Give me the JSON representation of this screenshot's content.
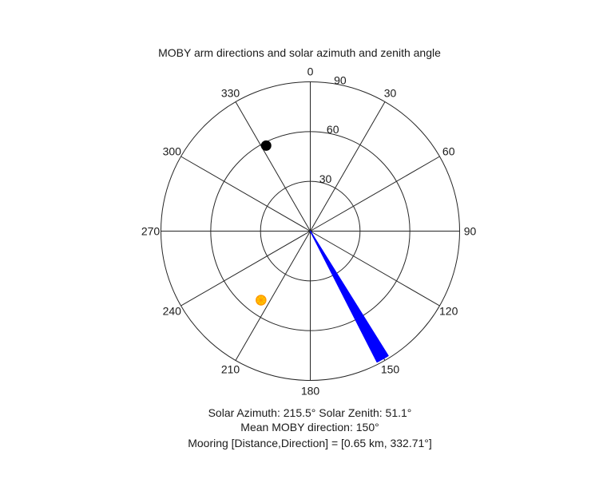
{
  "chart_data": {
    "type": "polar",
    "title": "MOBY arm directions and solar azimuth and zenith angle",
    "angle_ticks": [
      "0",
      "30",
      "60",
      "90",
      "120",
      "150",
      "180",
      "210",
      "240",
      "270",
      "300",
      "330"
    ],
    "radius_ticks": [
      30,
      60,
      90
    ],
    "rlim": [
      0,
      90
    ],
    "direction": "clockwise from north",
    "series": [
      {
        "name": "MOBY arm directions",
        "marker": "wedge",
        "color": "#0000ff",
        "angles": [
          148,
          148.5,
          149,
          149.5,
          150,
          150.5,
          151,
          151.5,
          152,
          152.5,
          153
        ],
        "radius": 90
      },
      {
        "name": "Sun",
        "marker": "sun",
        "color": "#ffcc00",
        "azimuth": 215.5,
        "zenith": 51.1
      },
      {
        "name": "Mooring",
        "marker": "dot",
        "color": "#000000",
        "direction": 332.71,
        "r": 58
      }
    ],
    "annotations": {
      "solar": "Solar Azimuth: 215.5°    Solar Zenith: 51.1°",
      "moby": "Mean MOBY direction: 150°",
      "mooring": "Mooring [Distance,Direction] = [0.65 km, 332.71°]"
    }
  }
}
